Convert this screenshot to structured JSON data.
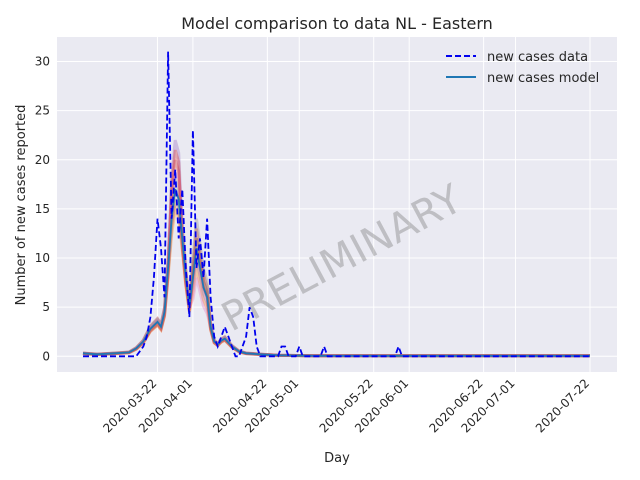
{
  "chart_data": {
    "type": "line",
    "title": "Model comparison to data NL - Eastern",
    "xlabel": "Day",
    "ylabel": "Number of new cases reported",
    "x_range": [
      "2020-03-01",
      "2020-07-22"
    ],
    "ylim": [
      -1.6,
      32.5
    ],
    "y_ticks": [
      0,
      5,
      10,
      15,
      20,
      25,
      30
    ],
    "x_ticks": [
      "2020-03-22",
      "2020-04-01",
      "2020-04-22",
      "2020-05-01",
      "2020-05-22",
      "2020-06-01",
      "2020-06-22",
      "2020-07-01",
      "2020-07-22"
    ],
    "grid": true,
    "legend_position": "top-right",
    "watermark": "PRELIMINARY",
    "colors": {
      "background": "#eaeaf2",
      "grid": "#ffffff",
      "data": "#0000ee",
      "model": "#1f77b4",
      "ensemble": [
        "#8c8c8c",
        "#d62728",
        "#ff7f0e",
        "#9467bd",
        "#8c564b",
        "#e377c2"
      ]
    },
    "series": [
      {
        "name": "new cases data",
        "style": "dashed",
        "points": [
          [
            "2020-03-01",
            0
          ],
          [
            "2020-03-08",
            0
          ],
          [
            "2020-03-12",
            0
          ],
          [
            "2020-03-16",
            0
          ],
          [
            "2020-03-18",
            1
          ],
          [
            "2020-03-19",
            2
          ],
          [
            "2020-03-20",
            4
          ],
          [
            "2020-03-21",
            8
          ],
          [
            "2020-03-22",
            14
          ],
          [
            "2020-03-23",
            11
          ],
          [
            "2020-03-24",
            6
          ],
          [
            "2020-03-25",
            31
          ],
          [
            "2020-03-26",
            14
          ],
          [
            "2020-03-27",
            19
          ],
          [
            "2020-03-28",
            12
          ],
          [
            "2020-03-29",
            17
          ],
          [
            "2020-03-30",
            9
          ],
          [
            "2020-03-31",
            4
          ],
          [
            "2020-04-01",
            23
          ],
          [
            "2020-04-02",
            9
          ],
          [
            "2020-04-03",
            12
          ],
          [
            "2020-04-04",
            8
          ],
          [
            "2020-04-05",
            14
          ],
          [
            "2020-04-06",
            6
          ],
          [
            "2020-04-07",
            2
          ],
          [
            "2020-04-08",
            1
          ],
          [
            "2020-04-09",
            2
          ],
          [
            "2020-04-10",
            3
          ],
          [
            "2020-04-11",
            2
          ],
          [
            "2020-04-12",
            1
          ],
          [
            "2020-04-13",
            0
          ],
          [
            "2020-04-14",
            0
          ],
          [
            "2020-04-15",
            1
          ],
          [
            "2020-04-16",
            2
          ],
          [
            "2020-04-17",
            5
          ],
          [
            "2020-04-18",
            4
          ],
          [
            "2020-04-19",
            1
          ],
          [
            "2020-04-20",
            0
          ],
          [
            "2020-04-25",
            0
          ],
          [
            "2020-04-26",
            1
          ],
          [
            "2020-04-27",
            1
          ],
          [
            "2020-04-28",
            0
          ],
          [
            "2020-04-30",
            0
          ],
          [
            "2020-05-01",
            1
          ],
          [
            "2020-05-02",
            0
          ],
          [
            "2020-05-07",
            0
          ],
          [
            "2020-05-08",
            1
          ],
          [
            "2020-05-09",
            0
          ],
          [
            "2020-05-28",
            0
          ],
          [
            "2020-05-29",
            1
          ],
          [
            "2020-05-30",
            0
          ],
          [
            "2020-07-22",
            0
          ]
        ]
      },
      {
        "name": "new cases model",
        "style": "solid",
        "points": [
          [
            "2020-03-01",
            0.3
          ],
          [
            "2020-03-05",
            0.2
          ],
          [
            "2020-03-10",
            0.3
          ],
          [
            "2020-03-14",
            0.4
          ],
          [
            "2020-03-16",
            0.8
          ],
          [
            "2020-03-18",
            1.5
          ],
          [
            "2020-03-20",
            2.8
          ],
          [
            "2020-03-22",
            3.5
          ],
          [
            "2020-03-23",
            3.0
          ],
          [
            "2020-03-24",
            4.5
          ],
          [
            "2020-03-25",
            9
          ],
          [
            "2020-03-26",
            14
          ],
          [
            "2020-03-27",
            17
          ],
          [
            "2020-03-28",
            16
          ],
          [
            "2020-03-29",
            12
          ],
          [
            "2020-03-30",
            8
          ],
          [
            "2020-03-31",
            5
          ],
          [
            "2020-04-01",
            8
          ],
          [
            "2020-04-02",
            11
          ],
          [
            "2020-04-03",
            9
          ],
          [
            "2020-04-04",
            7
          ],
          [
            "2020-04-05",
            6
          ],
          [
            "2020-04-06",
            3
          ],
          [
            "2020-04-07",
            1.5
          ],
          [
            "2020-04-08",
            1.2
          ],
          [
            "2020-04-09",
            1.6
          ],
          [
            "2020-04-10",
            1.8
          ],
          [
            "2020-04-12",
            1.0
          ],
          [
            "2020-04-14",
            0.5
          ],
          [
            "2020-04-16",
            0.3
          ],
          [
            "2020-04-20",
            0.2
          ],
          [
            "2020-04-25",
            0.1
          ],
          [
            "2020-05-05",
            0.05
          ],
          [
            "2020-07-22",
            0.05
          ]
        ]
      }
    ],
    "ensemble_peaks": [
      {
        "peak": 18,
        "second": 12,
        "scale": 1.0
      },
      {
        "peak": 20,
        "second": 13,
        "scale": 1.1
      },
      {
        "peak": 15,
        "second": 9,
        "scale": 0.9
      },
      {
        "peak": 22,
        "second": 10,
        "scale": 1.05
      },
      {
        "peak": 16,
        "second": 12,
        "scale": 0.95
      },
      {
        "peak": 19,
        "second": 8,
        "scale": 1.0
      },
      {
        "peak": 17,
        "second": 14,
        "scale": 1.08
      },
      {
        "peak": 21,
        "second": 11,
        "scale": 0.92
      }
    ]
  }
}
